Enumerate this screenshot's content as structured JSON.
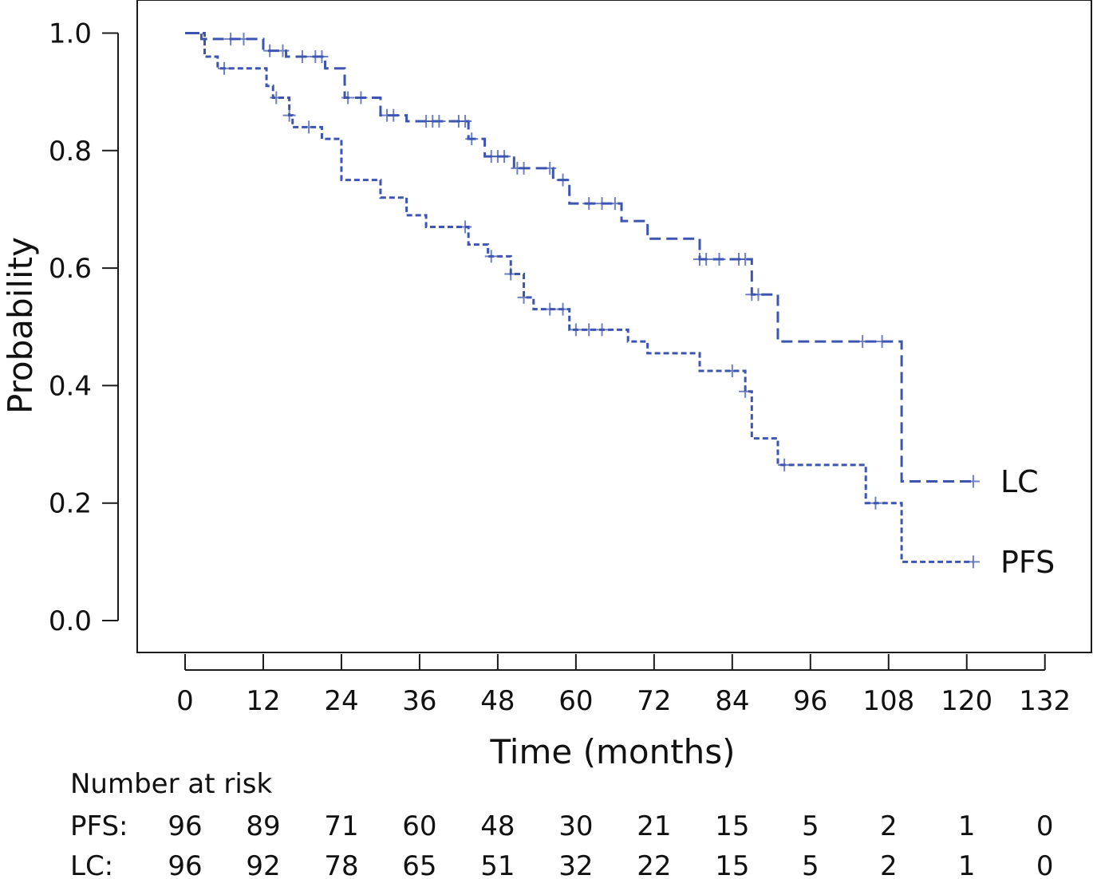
{
  "chart_data": {
    "type": "line",
    "subtype": "kaplan-meier step",
    "xlabel": "Time (months)",
    "ylabel": "Probability",
    "xlim": [
      0,
      132
    ],
    "ylim": [
      0,
      1
    ],
    "x_ticks": [
      0,
      12,
      24,
      36,
      48,
      60,
      72,
      84,
      96,
      108,
      120,
      132
    ],
    "y_ticks": [
      "0.0",
      "0.2",
      "0.4",
      "0.6",
      "0.8",
      "1.0"
    ],
    "grid": false,
    "color": "#3c55b0",
    "series": [
      {
        "name": "LC",
        "steps": [
          [
            0,
            1.0
          ],
          [
            2.5,
            0.99
          ],
          [
            12,
            0.97
          ],
          [
            15.5,
            0.96
          ],
          [
            21.5,
            0.94
          ],
          [
            24.5,
            0.89
          ],
          [
            30,
            0.86
          ],
          [
            34,
            0.85
          ],
          [
            43.5,
            0.82
          ],
          [
            46,
            0.79
          ],
          [
            50.5,
            0.77
          ],
          [
            56.5,
            0.75
          ],
          [
            59,
            0.71
          ],
          [
            67,
            0.68
          ],
          [
            71,
            0.65
          ],
          [
            79,
            0.615
          ],
          [
            87,
            0.555
          ],
          [
            91,
            0.475
          ],
          [
            110,
            0.237
          ],
          [
            121,
            0.237
          ]
        ],
        "censor_x": [
          7,
          9,
          13,
          15,
          18,
          20,
          21,
          25,
          27,
          31,
          32,
          37,
          38,
          39,
          42,
          43,
          44,
          47,
          48,
          49,
          51,
          52,
          56,
          58,
          62,
          64,
          66,
          79,
          80,
          82,
          85,
          86,
          87,
          88,
          104,
          107,
          121
        ]
      },
      {
        "name": "PFS",
        "steps": [
          [
            0,
            1.0
          ],
          [
            3,
            0.96
          ],
          [
            5,
            0.94
          ],
          [
            12.5,
            0.91
          ],
          [
            13.5,
            0.89
          ],
          [
            16,
            0.86
          ],
          [
            16.5,
            0.84
          ],
          [
            21,
            0.82
          ],
          [
            24,
            0.75
          ],
          [
            30,
            0.72
          ],
          [
            34,
            0.69
          ],
          [
            37,
            0.67
          ],
          [
            43.5,
            0.64
          ],
          [
            46.5,
            0.62
          ],
          [
            50,
            0.59
          ],
          [
            52,
            0.55
          ],
          [
            53.5,
            0.53
          ],
          [
            59,
            0.495
          ],
          [
            68,
            0.475
          ],
          [
            71,
            0.455
          ],
          [
            79,
            0.425
          ],
          [
            86,
            0.39
          ],
          [
            87,
            0.31
          ],
          [
            91,
            0.265
          ],
          [
            104.5,
            0.2
          ],
          [
            110,
            0.1
          ],
          [
            121,
            0.1
          ]
        ],
        "censor_x": [
          6,
          14,
          16,
          19,
          43,
          47,
          50,
          52,
          56,
          58,
          60,
          62,
          64,
          84,
          86,
          92,
          106,
          121
        ]
      }
    ],
    "series_end_labels": [
      "LC",
      "PFS"
    ],
    "risk_table": {
      "title": "Number at risk",
      "times": [
        0,
        12,
        24,
        36,
        48,
        60,
        72,
        84,
        96,
        108,
        120,
        132
      ],
      "rows": [
        {
          "label": "PFS:",
          "counts": [
            "96",
            "89",
            "71",
            "60",
            "48",
            "30",
            "21",
            "15",
            "5",
            "2",
            "1",
            "0"
          ]
        },
        {
          "label": "LC:",
          "counts": [
            "96",
            "92",
            "78",
            "65",
            "51",
            "32",
            "22",
            "15",
            "5",
            "2",
            "1",
            "0"
          ]
        }
      ]
    }
  }
}
